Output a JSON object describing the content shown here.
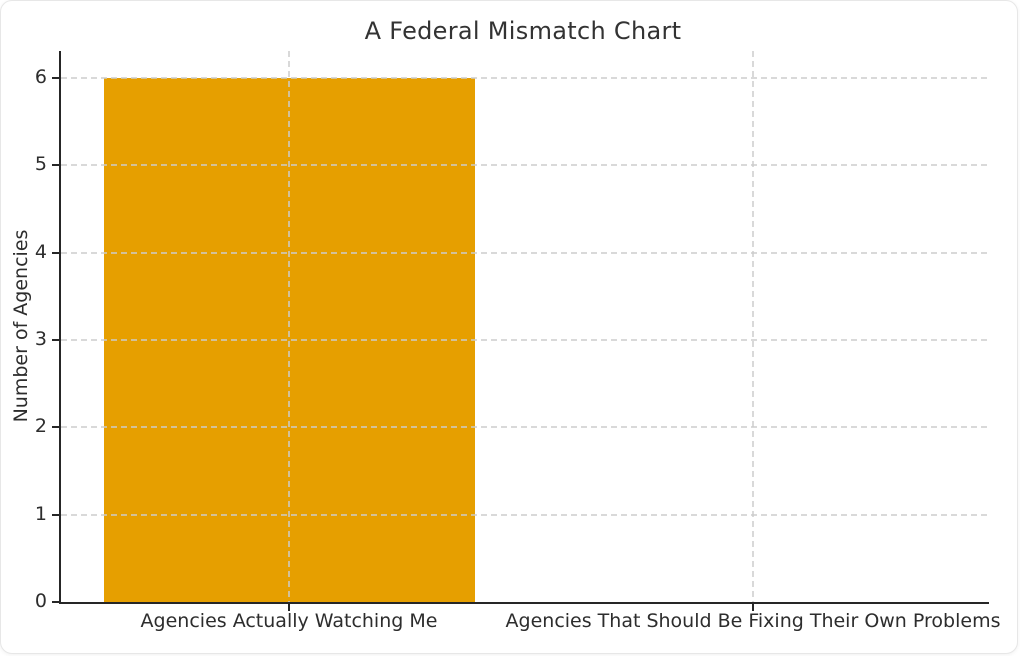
{
  "chart_data": {
    "type": "bar",
    "title": "A Federal Mismatch Chart",
    "xlabel": "",
    "ylabel": "Number of Agencies",
    "categories": [
      "Agencies Actually Watching Me",
      "Agencies That Should Be Fixing Their Own Problems"
    ],
    "values": [
      6,
      0
    ],
    "yticks": [
      0,
      1,
      2,
      3,
      4,
      5,
      6
    ],
    "ylim": [
      0,
      6.31
    ],
    "bar_color": "#E69F00",
    "bar_width_fraction": 0.8,
    "grid": "dashed",
    "grid_color": "#cccccc",
    "axis_color": "#262626",
    "text_color": "#2d2d2d",
    "background_color": "#ffffff",
    "legend": "none"
  }
}
